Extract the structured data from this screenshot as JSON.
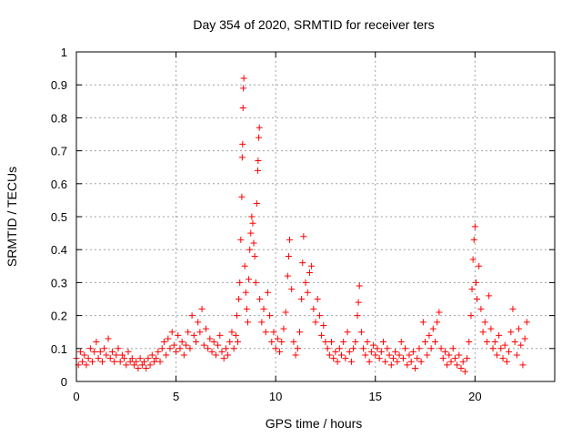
{
  "chart_data": {
    "type": "scatter",
    "title": "Day 354 of 2020, SRMTID for receiver ters",
    "xlabel": "GPS time / hours",
    "ylabel": "SRMTID / TECUs",
    "xlim": [
      0,
      24
    ],
    "ylim": [
      0,
      1
    ],
    "xticks": [
      "0",
      "5",
      "10",
      "15",
      "20"
    ],
    "xtick_values": [
      0,
      5,
      10,
      15,
      20
    ],
    "yticks": [
      "0",
      "0.1",
      "0.2",
      "0.3",
      "0.4",
      "0.5",
      "0.6",
      "0.7",
      "0.8",
      "0.9",
      "1"
    ],
    "ytick_values": [
      0,
      0.1,
      0.2,
      0.3,
      0.4,
      0.5,
      0.6,
      0.7,
      0.8,
      0.9,
      1
    ],
    "grid": true,
    "marker": "+",
    "color": "#ff0000",
    "series": [
      {
        "name": "SRMTID",
        "points": [
          [
            0.0,
            0.07
          ],
          [
            0.1,
            0.05
          ],
          [
            0.2,
            0.09
          ],
          [
            0.3,
            0.06
          ],
          [
            0.4,
            0.08
          ],
          [
            0.5,
            0.05
          ],
          [
            0.6,
            0.07
          ],
          [
            0.7,
            0.1
          ],
          [
            0.8,
            0.06
          ],
          [
            0.9,
            0.09
          ],
          [
            1.0,
            0.12
          ],
          [
            1.1,
            0.07
          ],
          [
            1.2,
            0.09
          ],
          [
            1.3,
            0.06
          ],
          [
            1.4,
            0.1
          ],
          [
            1.5,
            0.08
          ],
          [
            1.6,
            0.13
          ],
          [
            1.7,
            0.07
          ],
          [
            1.8,
            0.09
          ],
          [
            1.9,
            0.06
          ],
          [
            2.0,
            0.08
          ],
          [
            2.1,
            0.1
          ],
          [
            2.2,
            0.06
          ],
          [
            2.3,
            0.08
          ],
          [
            2.4,
            0.07
          ],
          [
            2.5,
            0.05
          ],
          [
            2.6,
            0.09
          ],
          [
            2.7,
            0.06
          ],
          [
            2.8,
            0.07
          ],
          [
            2.9,
            0.05
          ],
          [
            3.0,
            0.06
          ],
          [
            3.1,
            0.04
          ],
          [
            3.2,
            0.07
          ],
          [
            3.3,
            0.05
          ],
          [
            3.4,
            0.06
          ],
          [
            3.5,
            0.04
          ],
          [
            3.6,
            0.07
          ],
          [
            3.7,
            0.05
          ],
          [
            3.8,
            0.08
          ],
          [
            3.9,
            0.06
          ],
          [
            4.0,
            0.07
          ],
          [
            4.1,
            0.09
          ],
          [
            4.2,
            0.06
          ],
          [
            4.3,
            0.1
          ],
          [
            4.4,
            0.12
          ],
          [
            4.5,
            0.08
          ],
          [
            4.6,
            0.13
          ],
          [
            4.7,
            0.1
          ],
          [
            4.8,
            0.15
          ],
          [
            4.9,
            0.11
          ],
          [
            5.0,
            0.09
          ],
          [
            5.1,
            0.14
          ],
          [
            5.2,
            0.1
          ],
          [
            5.3,
            0.12
          ],
          [
            5.4,
            0.08
          ],
          [
            5.5,
            0.11
          ],
          [
            5.6,
            0.15
          ],
          [
            5.7,
            0.1
          ],
          [
            5.8,
            0.2
          ],
          [
            5.9,
            0.14
          ],
          [
            6.0,
            0.12
          ],
          [
            6.1,
            0.18
          ],
          [
            6.2,
            0.15
          ],
          [
            6.3,
            0.22
          ],
          [
            6.4,
            0.11
          ],
          [
            6.5,
            0.16
          ],
          [
            6.6,
            0.1
          ],
          [
            6.7,
            0.13
          ],
          [
            6.8,
            0.09
          ],
          [
            6.9,
            0.12
          ],
          [
            7.0,
            0.08
          ],
          [
            7.1,
            0.11
          ],
          [
            7.2,
            0.14
          ],
          [
            7.3,
            0.09
          ],
          [
            7.4,
            0.07
          ],
          [
            7.5,
            0.1
          ],
          [
            7.6,
            0.08
          ],
          [
            7.7,
            0.12
          ],
          [
            7.8,
            0.15
          ],
          [
            7.9,
            0.1
          ],
          [
            8.0,
            0.14
          ],
          [
            8.05,
            0.2
          ],
          [
            8.1,
            0.12
          ],
          [
            8.15,
            0.25
          ],
          [
            8.2,
            0.3
          ],
          [
            8.25,
            0.43
          ],
          [
            8.3,
            0.56
          ],
          [
            8.32,
            0.68
          ],
          [
            8.34,
            0.72
          ],
          [
            8.36,
            0.83
          ],
          [
            8.38,
            0.89
          ],
          [
            8.4,
            0.92
          ],
          [
            8.45,
            0.35
          ],
          [
            8.5,
            0.27
          ],
          [
            8.55,
            0.22
          ],
          [
            8.6,
            0.18
          ],
          [
            8.65,
            0.31
          ],
          [
            8.7,
            0.4
          ],
          [
            8.75,
            0.45
          ],
          [
            8.8,
            0.5
          ],
          [
            8.85,
            0.48
          ],
          [
            8.9,
            0.42
          ],
          [
            8.95,
            0.38
          ],
          [
            9.0,
            0.3
          ],
          [
            9.05,
            0.54
          ],
          [
            9.1,
            0.64
          ],
          [
            9.12,
            0.67
          ],
          [
            9.15,
            0.74
          ],
          [
            9.18,
            0.77
          ],
          [
            9.2,
            0.25
          ],
          [
            9.3,
            0.18
          ],
          [
            9.4,
            0.22
          ],
          [
            9.5,
            0.15
          ],
          [
            9.6,
            0.27
          ],
          [
            9.7,
            0.2
          ],
          [
            9.8,
            0.12
          ],
          [
            9.9,
            0.15
          ],
          [
            10.0,
            0.1
          ],
          [
            10.1,
            0.13
          ],
          [
            10.2,
            0.09
          ],
          [
            10.3,
            0.12
          ],
          [
            10.4,
            0.16
          ],
          [
            10.5,
            0.21
          ],
          [
            10.6,
            0.32
          ],
          [
            10.65,
            0.38
          ],
          [
            10.7,
            0.43
          ],
          [
            10.8,
            0.28
          ],
          [
            10.9,
            0.12
          ],
          [
            11.0,
            0.08
          ],
          [
            11.1,
            0.1
          ],
          [
            11.2,
            0.15
          ],
          [
            11.3,
            0.25
          ],
          [
            11.35,
            0.36
          ],
          [
            11.4,
            0.44
          ],
          [
            11.5,
            0.3
          ],
          [
            11.6,
            0.27
          ],
          [
            11.7,
            0.33
          ],
          [
            11.8,
            0.35
          ],
          [
            11.9,
            0.22
          ],
          [
            12.0,
            0.18
          ],
          [
            12.1,
            0.25
          ],
          [
            12.2,
            0.2
          ],
          [
            12.3,
            0.14
          ],
          [
            12.4,
            0.17
          ],
          [
            12.5,
            0.12
          ],
          [
            12.6,
            0.1
          ],
          [
            12.7,
            0.08
          ],
          [
            12.8,
            0.12
          ],
          [
            12.9,
            0.07
          ],
          [
            13.0,
            0.09
          ],
          [
            13.1,
            0.06
          ],
          [
            13.2,
            0.1
          ],
          [
            13.3,
            0.08
          ],
          [
            13.4,
            0.12
          ],
          [
            13.5,
            0.07
          ],
          [
            13.6,
            0.15
          ],
          [
            13.7,
            0.09
          ],
          [
            13.8,
            0.06
          ],
          [
            13.9,
            0.1
          ],
          [
            14.0,
            0.12
          ],
          [
            14.1,
            0.2
          ],
          [
            14.15,
            0.24
          ],
          [
            14.2,
            0.29
          ],
          [
            14.3,
            0.15
          ],
          [
            14.4,
            0.1
          ],
          [
            14.5,
            0.08
          ],
          [
            14.6,
            0.12
          ],
          [
            14.7,
            0.06
          ],
          [
            14.8,
            0.09
          ],
          [
            14.9,
            0.11
          ],
          [
            15.0,
            0.08
          ],
          [
            15.1,
            0.1
          ],
          [
            15.2,
            0.07
          ],
          [
            15.3,
            0.09
          ],
          [
            15.4,
            0.12
          ],
          [
            15.5,
            0.06
          ],
          [
            15.6,
            0.1
          ],
          [
            15.7,
            0.08
          ],
          [
            15.8,
            0.05
          ],
          [
            15.9,
            0.07
          ],
          [
            16.0,
            0.09
          ],
          [
            16.1,
            0.06
          ],
          [
            16.2,
            0.08
          ],
          [
            16.3,
            0.12
          ],
          [
            16.4,
            0.07
          ],
          [
            16.5,
            0.1
          ],
          [
            16.6,
            0.05
          ],
          [
            16.7,
            0.08
          ],
          [
            16.8,
            0.06
          ],
          [
            16.9,
            0.09
          ],
          [
            17.0,
            0.04
          ],
          [
            17.1,
            0.07
          ],
          [
            17.2,
            0.1
          ],
          [
            17.3,
            0.06
          ],
          [
            17.4,
            0.18
          ],
          [
            17.5,
            0.12
          ],
          [
            17.6,
            0.08
          ],
          [
            17.7,
            0.14
          ],
          [
            17.8,
            0.1
          ],
          [
            17.9,
            0.16
          ],
          [
            18.0,
            0.12
          ],
          [
            18.1,
            0.18
          ],
          [
            18.2,
            0.21
          ],
          [
            18.3,
            0.1
          ],
          [
            18.4,
            0.07
          ],
          [
            18.5,
            0.09
          ],
          [
            18.6,
            0.05
          ],
          [
            18.7,
            0.08
          ],
          [
            18.8,
            0.06
          ],
          [
            18.9,
            0.1
          ],
          [
            19.0,
            0.07
          ],
          [
            19.1,
            0.05
          ],
          [
            19.2,
            0.08
          ],
          [
            19.3,
            0.04
          ],
          [
            19.4,
            0.06
          ],
          [
            19.5,
            0.03
          ],
          [
            19.6,
            0.07
          ],
          [
            19.7,
            0.12
          ],
          [
            19.8,
            0.2
          ],
          [
            19.85,
            0.28
          ],
          [
            19.9,
            0.37
          ],
          [
            19.95,
            0.43
          ],
          [
            20.0,
            0.47
          ],
          [
            20.05,
            0.3
          ],
          [
            20.1,
            0.25
          ],
          [
            20.2,
            0.35
          ],
          [
            20.3,
            0.22
          ],
          [
            20.4,
            0.15
          ],
          [
            20.5,
            0.18
          ],
          [
            20.6,
            0.12
          ],
          [
            20.7,
            0.26
          ],
          [
            20.8,
            0.16
          ],
          [
            20.9,
            0.1
          ],
          [
            21.0,
            0.12
          ],
          [
            21.1,
            0.08
          ],
          [
            21.2,
            0.14
          ],
          [
            21.3,
            0.1
          ],
          [
            21.4,
            0.07
          ],
          [
            21.5,
            0.11
          ],
          [
            21.6,
            0.06
          ],
          [
            21.7,
            0.09
          ],
          [
            21.8,
            0.15
          ],
          [
            21.9,
            0.22
          ],
          [
            22.0,
            0.12
          ],
          [
            22.1,
            0.08
          ],
          [
            22.2,
            0.16
          ],
          [
            22.3,
            0.11
          ],
          [
            22.4,
            0.05
          ],
          [
            22.5,
            0.13
          ],
          [
            22.6,
            0.18
          ]
        ]
      }
    ]
  }
}
